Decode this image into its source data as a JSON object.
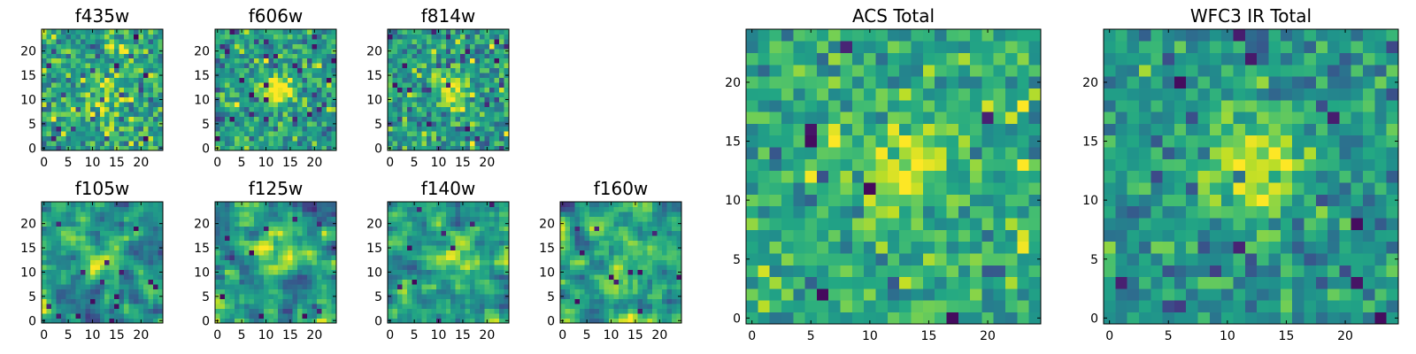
{
  "figure": {
    "background": "#ffffff",
    "colormap": "viridis"
  },
  "chart_data": [
    {
      "type": "heatmap",
      "title": "f435w",
      "grid_size": 25,
      "xlim": [
        -0.5,
        24.5
      ],
      "ylim": [
        -0.5,
        24.5
      ],
      "xticks": [
        0,
        5,
        10,
        15,
        20
      ],
      "yticks": [
        0,
        5,
        10,
        15,
        20
      ],
      "xtick_labels": [
        "0",
        "5",
        "10",
        "15",
        "20"
      ],
      "ytick_labels": [
        "0",
        "5",
        "10",
        "15",
        "20"
      ],
      "texture": "pixel noise, no clear source",
      "center": [
        12,
        12
      ],
      "source_strength": 0.15,
      "source_radius": 3.0,
      "noise_mean": 0.58,
      "noise_std": 0.17,
      "smooth": 0,
      "seed": 11
    },
    {
      "type": "heatmap",
      "title": "f606w",
      "grid_size": 25,
      "xlim": [
        -0.5,
        24.5
      ],
      "ylim": [
        -0.5,
        24.5
      ],
      "xticks": [
        0,
        5,
        10,
        15,
        20
      ],
      "yticks": [
        0,
        5,
        10,
        15,
        20
      ],
      "xtick_labels": [
        "0",
        "5",
        "10",
        "15",
        "20"
      ],
      "ytick_labels": [
        "0",
        "5",
        "10",
        "15",
        "20"
      ],
      "texture": "pixel noise, compact bright source near centre",
      "center": [
        12.5,
        12
      ],
      "source_strength": 0.55,
      "source_radius": 2.0,
      "noise_mean": 0.55,
      "noise_std": 0.15,
      "smooth": 0,
      "seed": 23
    },
    {
      "type": "heatmap",
      "title": "f814w",
      "grid_size": 25,
      "xlim": [
        -0.5,
        24.5
      ],
      "ylim": [
        -0.5,
        24.5
      ],
      "xticks": [
        0,
        5,
        10,
        15,
        20
      ],
      "yticks": [
        0,
        5,
        10,
        15,
        20
      ],
      "xtick_labels": [
        "0",
        "5",
        "10",
        "15",
        "20"
      ],
      "ytick_labels": [
        "0",
        "5",
        "10",
        "15",
        "20"
      ],
      "texture": "pixel noise, bright source near centre",
      "center": [
        13,
        12
      ],
      "source_strength": 0.45,
      "source_radius": 2.2,
      "noise_mean": 0.56,
      "noise_std": 0.16,
      "smooth": 0,
      "seed": 37
    },
    {
      "type": "heatmap",
      "title": "f105w",
      "grid_size": 25,
      "xlim": [
        -0.5,
        24.5
      ],
      "ylim": [
        -0.5,
        24.5
      ],
      "xticks": [
        0,
        5,
        10,
        15,
        20
      ],
      "yticks": [
        0,
        5,
        10,
        15,
        20
      ],
      "xtick_labels": [
        "0",
        "5",
        "10",
        "15",
        "20"
      ],
      "ytick_labels": [
        "0",
        "5",
        "10",
        "15",
        "20"
      ],
      "texture": "smooth correlated noise, faint source",
      "center": [
        11,
        13
      ],
      "source_strength": 0.35,
      "source_radius": 3.0,
      "noise_mean": 0.52,
      "noise_std": 0.2,
      "smooth": 1,
      "seed": 41
    },
    {
      "type": "heatmap",
      "title": "f125w",
      "grid_size": 25,
      "xlim": [
        -0.5,
        24.5
      ],
      "ylim": [
        -0.5,
        24.5
      ],
      "xticks": [
        0,
        5,
        10,
        15,
        20
      ],
      "yticks": [
        0,
        5,
        10,
        15,
        20
      ],
      "xtick_labels": [
        "0",
        "5",
        "10",
        "15",
        "20"
      ],
      "ytick_labels": [
        "0",
        "5",
        "10",
        "15",
        "20"
      ],
      "texture": "smooth correlated noise, faint source",
      "center": [
        13,
        12
      ],
      "source_strength": 0.35,
      "source_radius": 3.0,
      "noise_mean": 0.52,
      "noise_std": 0.21,
      "smooth": 1,
      "seed": 53
    },
    {
      "type": "heatmap",
      "title": "f140w",
      "grid_size": 25,
      "xlim": [
        -0.5,
        24.5
      ],
      "ylim": [
        -0.5,
        24.5
      ],
      "xticks": [
        0,
        5,
        10,
        15,
        20
      ],
      "yticks": [
        0,
        5,
        10,
        15,
        20
      ],
      "xtick_labels": [
        "0",
        "5",
        "10",
        "15",
        "20"
      ],
      "ytick_labels": [
        "0",
        "5",
        "10",
        "15",
        "20"
      ],
      "texture": "smooth correlated noise, faint source",
      "center": [
        13,
        13
      ],
      "source_strength": 0.3,
      "source_radius": 3.0,
      "noise_mean": 0.55,
      "noise_std": 0.19,
      "smooth": 1,
      "seed": 67
    },
    {
      "type": "heatmap",
      "title": "f160w",
      "grid_size": 25,
      "xlim": [
        -0.5,
        24.5
      ],
      "ylim": [
        -0.5,
        24.5
      ],
      "xticks": [
        0,
        5,
        10,
        15,
        20
      ],
      "yticks": [
        0,
        5,
        10,
        15,
        20
      ],
      "xtick_labels": [
        "0",
        "5",
        "10",
        "15",
        "20"
      ],
      "ytick_labels": [
        "0",
        "5",
        "10",
        "15",
        "20"
      ],
      "texture": "smooth correlated noise",
      "center": [
        12,
        12
      ],
      "source_strength": 0.25,
      "source_radius": 3.0,
      "noise_mean": 0.57,
      "noise_std": 0.2,
      "smooth": 1,
      "seed": 79
    },
    {
      "type": "heatmap",
      "title": "ACS Total",
      "grid_size": 25,
      "xlim": [
        -0.5,
        24.5
      ],
      "ylim": [
        -0.5,
        24.5
      ],
      "xticks": [
        0,
        5,
        10,
        15,
        20
      ],
      "yticks": [
        0,
        5,
        10,
        15,
        20
      ],
      "xtick_labels": [
        "0",
        "5",
        "10",
        "15",
        "20"
      ],
      "ytick_labels": [
        "0",
        "5",
        "10",
        "15",
        "20"
      ],
      "texture": "pixel noise, extended bright source centred near (12, 12)",
      "center": [
        12.5,
        12.5
      ],
      "source_strength": 0.4,
      "source_radius": 2.6,
      "noise_mean": 0.6,
      "noise_std": 0.14,
      "smooth": 0,
      "seed": 97
    },
    {
      "type": "heatmap",
      "title": "WFC3 IR Total",
      "grid_size": 25,
      "xlim": [
        -0.5,
        24.5
      ],
      "ylim": [
        -0.5,
        24.5
      ],
      "xticks": [
        0,
        5,
        10,
        15,
        20
      ],
      "yticks": [
        0,
        5,
        10,
        15,
        20
      ],
      "xtick_labels": [
        "0",
        "5",
        "10",
        "15",
        "20"
      ],
      "ytick_labels": [
        "0",
        "5",
        "10",
        "15",
        "20"
      ],
      "texture": "pixel noise, extended bright source centred near (12, 13)",
      "center": [
        12,
        13
      ],
      "source_strength": 0.42,
      "source_radius": 3.0,
      "noise_mean": 0.52,
      "noise_std": 0.13,
      "smooth": 0,
      "seed": 113
    }
  ]
}
